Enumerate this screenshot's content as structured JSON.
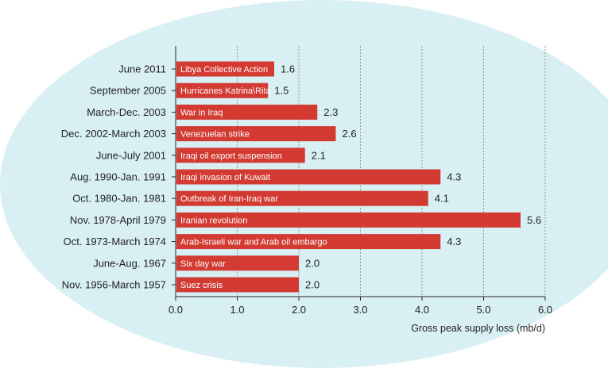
{
  "colors": {
    "background_ellipse": "#d8f0f4",
    "bar": "#d33b32",
    "bar_text": "#ffffff",
    "grid": "#7f7f7f",
    "axis": "#222222",
    "text": "#222222"
  },
  "chart_data": {
    "type": "bar",
    "orientation": "horizontal",
    "title": "",
    "xlabel": "Gross peak supply loss (mb/d)",
    "ylabel": "",
    "xlim": [
      0,
      6
    ],
    "xticks": [
      "0.0",
      "1.0",
      "2.0",
      "3.0",
      "4.0",
      "5.0",
      "6.0"
    ],
    "grid": "vertical dashed",
    "categories": [
      "June 2011",
      "September 2005",
      "March-Dec. 2003",
      "Dec. 2002-March 2003",
      "June-July 2001",
      "Aug. 1990-Jan. 1991",
      "Oct. 1980-Jan. 1981",
      "Nov. 1978-April 1979",
      "Oct. 1973-March 1974",
      "June-Aug. 1967",
      "Nov. 1956-March 1957"
    ],
    "events": [
      "Libya Collective Action",
      "Hurricanes Katrina\\Rita",
      "War in Iraq",
      "Venezuelan strike",
      "Iraqi oil export suspension",
      "Iraqi invasion of Kuwait",
      "Outbreak of Iran-Iraq war",
      "Iranian revolution",
      "Arab-Israeli war and Arab oil embargo",
      "Six day war",
      "Suez crisis"
    ],
    "values": [
      1.6,
      1.5,
      2.3,
      2.6,
      2.1,
      4.3,
      4.1,
      5.6,
      4.3,
      2.0,
      2.0
    ],
    "value_labels": [
      "1.6",
      "1.5",
      "2.3",
      "2.6",
      "2.1",
      "4.3",
      "4.1",
      "5.6",
      "4.3",
      "2.0",
      "2.0"
    ]
  }
}
